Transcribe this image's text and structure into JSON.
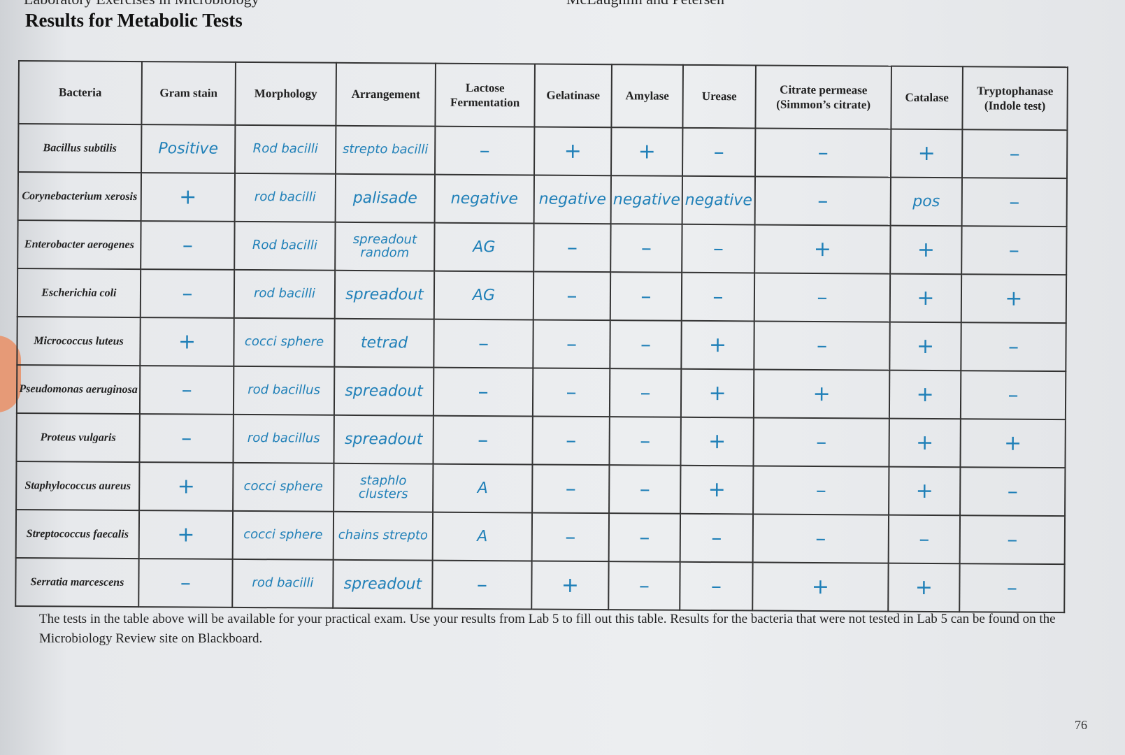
{
  "header": {
    "book_title": "Laboratory Exercises in Microbiology",
    "authors": "McLaughlin and Petersen",
    "page_title": "Results for Metabolic Tests"
  },
  "table": {
    "columns": [
      "Bacteria",
      "Gram stain",
      "Morphology",
      "Arrangement",
      "Lactose Fermentation",
      "Gelatinase",
      "Amylase",
      "Urease",
      "Citrate permease (Simmon’s citrate)",
      "Catalase",
      "Tryptophanase (Indole test)"
    ],
    "rows": [
      {
        "bacteria": "Bacillus subtilis",
        "cells": [
          "Positive",
          "Rod bacilli",
          "strepto bacilli",
          "–",
          "+",
          "+",
          "–",
          "–",
          "+",
          "–"
        ]
      },
      {
        "bacteria": "Corynebacterium xerosis",
        "cells": [
          "+",
          "rod bacilli",
          "palisade",
          "negative",
          "negative",
          "negative",
          "negative",
          "–",
          "pos",
          "–"
        ]
      },
      {
        "bacteria": "Enterobacter aerogenes",
        "cells": [
          "–",
          "Rod bacilli",
          "spreadout random",
          "AG",
          "–",
          "–",
          "–",
          "+",
          "+",
          "–"
        ]
      },
      {
        "bacteria": "Escherichia coli",
        "cells": [
          "–",
          "rod bacilli",
          "spreadout",
          "AG",
          "–",
          "–",
          "–",
          "–",
          "+",
          "+"
        ]
      },
      {
        "bacteria": "Micrococcus luteus",
        "cells": [
          "+",
          "cocci sphere",
          "tetrad",
          "–",
          "–",
          "–",
          "+",
          "–",
          "+",
          "–"
        ]
      },
      {
        "bacteria": "Pseudomonas aeruginosa",
        "cells": [
          "–",
          "rod bacillus",
          "spreadout",
          "–",
          "–",
          "–",
          "+",
          "+",
          "+",
          "–"
        ]
      },
      {
        "bacteria": "Proteus vulgaris",
        "cells": [
          "–",
          "rod bacillus",
          "spreadout",
          "–",
          "–",
          "–",
          "+",
          "–",
          "+",
          "+"
        ]
      },
      {
        "bacteria": "Staphylococcus aureus",
        "cells": [
          "+",
          "cocci sphere",
          "staphlo clusters",
          "A",
          "–",
          "–",
          "+",
          "–",
          "+",
          "–"
        ]
      },
      {
        "bacteria": "Streptococcus faecalis",
        "cells": [
          "+",
          "cocci sphere",
          "chains strepto",
          "A",
          "–",
          "–",
          "–",
          "–",
          "–",
          "–"
        ]
      },
      {
        "bacteria": "Serratia marcescens",
        "cells": [
          "–",
          "rod bacilli",
          "spreadout",
          "–",
          "+",
          "–",
          "–",
          "+",
          "+",
          "–"
        ]
      }
    ]
  },
  "footer_text": "The tests in the table above will be available for your practical exam.  Use your results from Lab 5 to fill out this table.  Results for the bacteria that were not tested in Lab 5 can be found on the Microbiology Review site on Blackboard.",
  "page_number": "76",
  "colors": {
    "handwriting": "#2080b8",
    "print": "#222222"
  }
}
